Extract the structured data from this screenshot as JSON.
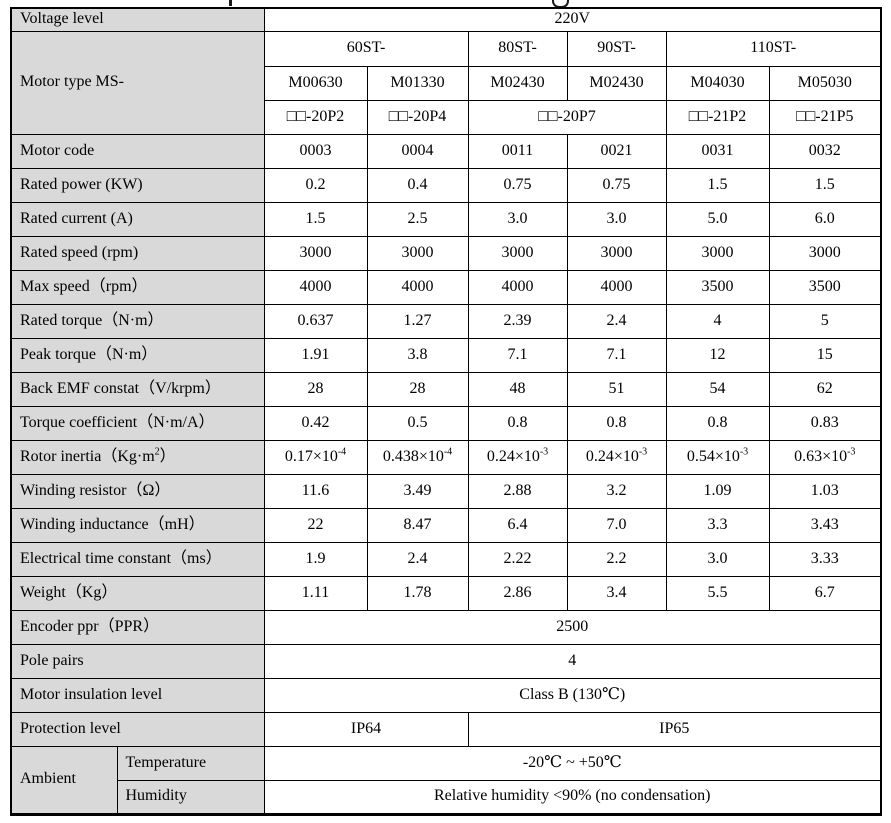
{
  "accent_colors": {
    "label_cell_fill": "#d9d9d9",
    "border": "#000000"
  },
  "table": {
    "voltage": {
      "label": "Voltage level",
      "value": "220V"
    },
    "motor_type": {
      "label": "Motor type MS-",
      "series": [
        "60ST-",
        "80ST-",
        "90ST-",
        "110ST-"
      ],
      "models": [
        "M00630",
        "M01330",
        "M02430",
        "M02430",
        "M04030",
        "M05030"
      ],
      "drive_codes": [
        "□□-20P2",
        "□□-20P4",
        "□□-20P7",
        "□□-21P2",
        "□□-21P5"
      ]
    },
    "spec_rows": [
      {
        "label": "Motor code",
        "values": [
          "0003",
          "0004",
          "0011",
          "0021",
          "0031",
          "0032"
        ]
      },
      {
        "label": "Rated power (KW)",
        "values": [
          "0.2",
          "0.4",
          "0.75",
          "0.75",
          "1.5",
          "1.5"
        ]
      },
      {
        "label": "Rated current (A)",
        "values": [
          "1.5",
          "2.5",
          "3.0",
          "3.0",
          "5.0",
          "6.0"
        ]
      },
      {
        "label": "Rated speed (rpm)",
        "values": [
          "3000",
          "3000",
          "3000",
          "3000",
          "3000",
          "3000"
        ]
      },
      {
        "label": "Max speed（rpm）",
        "values": [
          "4000",
          "4000",
          "4000",
          "4000",
          "3500",
          "3500"
        ]
      },
      {
        "label": "Rated torque（N·m）",
        "values": [
          "0.637",
          "1.27",
          "2.39",
          "2.4",
          "4",
          "5"
        ]
      },
      {
        "label": "Peak torque（N·m）",
        "values": [
          "1.91",
          "3.8",
          "7.1",
          "7.1",
          "12",
          "15"
        ]
      },
      {
        "label": "Back EMF constat（V/krpm）",
        "values": [
          "28",
          "28",
          "48",
          "51",
          "54",
          "62"
        ]
      },
      {
        "label": "Torque coefficient（N·m/A）",
        "values": [
          "0.42",
          "0.5",
          "0.8",
          "0.8",
          "0.8",
          "0.83"
        ]
      },
      {
        "label": "Rotor inertia（Kg·m^{2}）",
        "values": [
          "0.17×10^{-4}",
          "0.438×10^{-4}",
          "0.24×10^{-3}",
          "0.24×10^{-3}",
          "0.54×10^{-3}",
          "0.63×10^{-3}"
        ]
      },
      {
        "label": "Winding resistor（Ω）",
        "values": [
          "11.6",
          "3.49",
          "2.88",
          "3.2",
          "1.09",
          "1.03"
        ]
      },
      {
        "label": "Winding inductance（mH）",
        "values": [
          "22",
          "8.47",
          "6.4",
          "7.0",
          "3.3",
          "3.43"
        ]
      },
      {
        "label": "Electrical time constant（ms）",
        "values": [
          "1.9",
          "2.4",
          "2.22",
          "2.2",
          "3.0",
          "3.33"
        ]
      },
      {
        "label": "Weight（Kg）",
        "values": [
          "1.11",
          "1.78",
          "2.86",
          "3.4",
          "5.5",
          "6.7"
        ]
      }
    ],
    "encoder": {
      "label": "Encoder ppr（PPR）",
      "value": "2500"
    },
    "pole_pairs": {
      "label": "Pole pairs",
      "value": "4"
    },
    "insulation": {
      "label": "Motor insulation level",
      "value": "Class B (130℃)"
    },
    "protection": {
      "label": "Protection level",
      "value_left": "IP64",
      "value_right": "IP65"
    },
    "ambient": {
      "label": "Ambient",
      "temperature": {
        "label": "Temperature",
        "value": "-20℃ ~ +50℃"
      },
      "humidity": {
        "label": "Humidity",
        "value": "Relative humidity <90% (no condensation)"
      }
    }
  }
}
